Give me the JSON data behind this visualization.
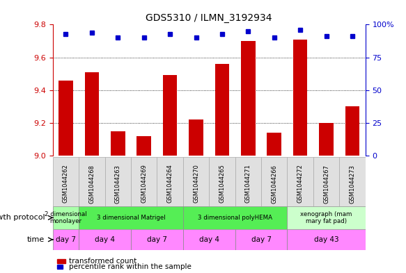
{
  "title": "GDS5310 / ILMN_3192934",
  "samples": [
    "GSM1044262",
    "GSM1044268",
    "GSM1044263",
    "GSM1044269",
    "GSM1044264",
    "GSM1044270",
    "GSM1044265",
    "GSM1044271",
    "GSM1044266",
    "GSM1044272",
    "GSM1044267",
    "GSM1044273"
  ],
  "bar_values": [
    9.46,
    9.51,
    9.15,
    9.12,
    9.49,
    9.22,
    9.56,
    9.7,
    9.14,
    9.71,
    9.2,
    9.3
  ],
  "dot_values": [
    93,
    94,
    90,
    90,
    93,
    90,
    93,
    95,
    90,
    96,
    91,
    91
  ],
  "bar_color": "#cc0000",
  "dot_color": "#0000cc",
  "ylim_left": [
    9.0,
    9.8
  ],
  "ylim_right": [
    0,
    100
  ],
  "yticks_left": [
    9.0,
    9.2,
    9.4,
    9.6,
    9.8
  ],
  "yticks_right": [
    0,
    25,
    50,
    75,
    100
  ],
  "grid_lines": [
    9.2,
    9.4,
    9.6
  ],
  "gp_groups": [
    {
      "label": "2 dimensional\nmonolayer",
      "c0": 0,
      "c1": 0,
      "color": "#aaffaa"
    },
    {
      "label": "3 dimensional Matrigel",
      "c0": 1,
      "c1": 4,
      "color": "#55ee55"
    },
    {
      "label": "3 dimensional polyHEMA",
      "c0": 5,
      "c1": 8,
      "color": "#55ee55"
    },
    {
      "label": "xenograph (mam\nmary fat pad)",
      "c0": 9,
      "c1": 11,
      "color": "#ccffcc"
    }
  ],
  "time_groups": [
    {
      "label": "day 7",
      "c0": 0,
      "c1": 0,
      "color": "#ff88ff"
    },
    {
      "label": "day 4",
      "c0": 1,
      "c1": 2,
      "color": "#ff88ff"
    },
    {
      "label": "day 7",
      "c0": 3,
      "c1": 4,
      "color": "#ff88ff"
    },
    {
      "label": "day 4",
      "c0": 5,
      "c1": 6,
      "color": "#ff88ff"
    },
    {
      "label": "day 7",
      "c0": 7,
      "c1": 8,
      "color": "#ff88ff"
    },
    {
      "label": "day 43",
      "c0": 9,
      "c1": 11,
      "color": "#ff88ff"
    }
  ],
  "left_axis_color": "#cc0000",
  "right_axis_color": "#0000cc",
  "bar_legend_label": "transformed count",
  "dot_legend_label": "percentile rank within the sample",
  "n_samples": 12,
  "gp_label": "growth protocol",
  "time_label": "time"
}
